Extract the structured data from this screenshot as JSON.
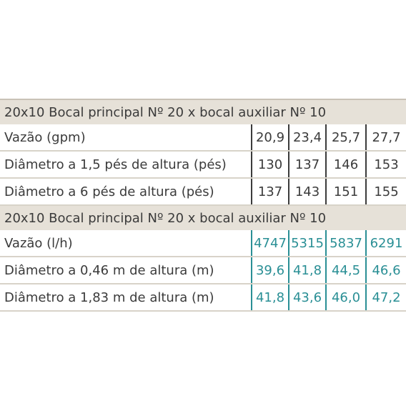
{
  "imperial": {
    "title": "20x10 Bocal principal Nº 20 x bocal auxiliar Nº 10",
    "rows": [
      {
        "label": "Vazão (gpm)",
        "values": [
          "20,9",
          "23,4",
          "25,7",
          "27,7"
        ]
      },
      {
        "label": "Diâmetro a 1,5 pés de altura (pés)",
        "values": [
          "130",
          "137",
          "146",
          "153"
        ]
      },
      {
        "label": "Diâmetro a 6 pés de altura (pés)",
        "values": [
          "137",
          "143",
          "151",
          "155"
        ]
      }
    ]
  },
  "metric": {
    "title": "20x10 Bocal principal Nº 20 x bocal auxiliar Nº 10",
    "rows": [
      {
        "label": "Vazão (l/h)",
        "values": [
          "4747",
          "5315",
          "5837",
          "6291"
        ]
      },
      {
        "label": "Diâmetro a 0,46 m de altura (m)",
        "values": [
          "39,6",
          "41,8",
          "44,5",
          "46,6"
        ]
      },
      {
        "label": "Diâmetro a 1,83 m de altura (m)",
        "values": [
          "41,8",
          "43,6",
          "46,0",
          "47,2"
        ]
      }
    ]
  },
  "colors": {
    "header_bg": "#e6e1d8",
    "metric_values": "#2a8f95",
    "text": "#3b3b3b"
  }
}
